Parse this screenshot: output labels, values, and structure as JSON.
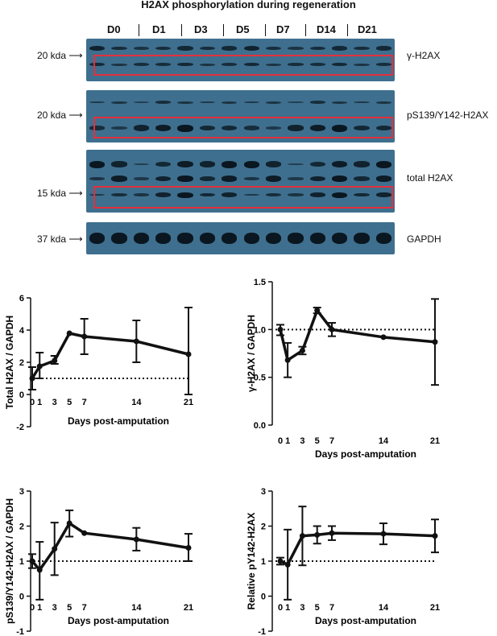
{
  "title": "H2AX phosphorylation during regeneration",
  "lanes": [
    "D0",
    "D1",
    "D3",
    "D5",
    "D7",
    "D14",
    "D21"
  ],
  "blots": [
    {
      "protein": "γ-H2AX",
      "marker": "20 kda"
    },
    {
      "protein": "pS139/Y142-H2AX",
      "marker": "20 kda"
    },
    {
      "protein": "total H2AX",
      "marker": "15 kda"
    },
    {
      "protein": "GAPDH",
      "marker": "37 kda"
    }
  ],
  "chart_data": [
    {
      "type": "line",
      "x": [
        0,
        1,
        3,
        5,
        7,
        14,
        21
      ],
      "y": [
        1.0,
        1.75,
        2.1,
        3.8,
        3.6,
        3.3,
        2.5
      ],
      "err_low": [
        0.3,
        1.0,
        1.9,
        3.8,
        2.5,
        2.0,
        0.0
      ],
      "err_high": [
        1.7,
        2.6,
        2.4,
        3.8,
        4.7,
        4.6,
        5.4
      ],
      "xlabel": "Days post-amputation",
      "ylabel": "Total H2AX / GAPDH",
      "ylim": [
        -2,
        6
      ],
      "yticks": [
        "-2",
        "0",
        "2",
        "4",
        "6"
      ],
      "xticks": [
        "0",
        "1",
        "3",
        "5",
        "7",
        "14",
        "21"
      ],
      "reference_line": 1
    },
    {
      "type": "line",
      "x": [
        0,
        1,
        3,
        5,
        7,
        14,
        21
      ],
      "y": [
        1.0,
        0.68,
        0.78,
        1.2,
        1.0,
        0.92,
        0.87
      ],
      "err_low": [
        0.94,
        0.5,
        0.74,
        1.17,
        0.93,
        0.92,
        0.42
      ],
      "err_high": [
        1.05,
        0.86,
        0.82,
        1.23,
        1.07,
        0.92,
        1.32
      ],
      "xlabel": "Days post-amputation",
      "ylabel": "γ-H2AX / GAPDH",
      "ylim": [
        0,
        1.5
      ],
      "yticks": [
        "0.0",
        "0.5",
        "1.0",
        "1.5"
      ],
      "xticks": [
        "0",
        "1",
        "3",
        "5",
        "7",
        "14",
        "21"
      ],
      "reference_line": 1
    },
    {
      "type": "line",
      "x": [
        0,
        1,
        3,
        5,
        7,
        14,
        21
      ],
      "y": [
        1.0,
        0.75,
        1.35,
        2.08,
        1.8,
        1.62,
        1.38
      ],
      "err_low": [
        0.8,
        -0.1,
        0.6,
        1.7,
        1.8,
        1.3,
        1.0
      ],
      "err_high": [
        1.2,
        1.55,
        2.1,
        2.45,
        1.8,
        1.95,
        1.78
      ],
      "xlabel": "Days post-amputation",
      "ylabel": "pS139/Y142-H2AX / GAPDH",
      "ylim": [
        -1,
        3
      ],
      "yticks": [
        "-1",
        "0",
        "1",
        "2",
        "3"
      ],
      "xticks": [
        "0",
        "1",
        "3",
        "5",
        "7",
        "14",
        "21"
      ],
      "reference_line": 1
    },
    {
      "type": "line",
      "x": [
        0,
        1,
        3,
        5,
        7,
        14,
        21
      ],
      "y": [
        1.0,
        0.9,
        1.72,
        1.75,
        1.8,
        1.78,
        1.72
      ],
      "err_low": [
        0.9,
        -0.1,
        0.88,
        1.5,
        1.6,
        1.48,
        1.25
      ],
      "err_high": [
        1.1,
        1.9,
        2.56,
        2.0,
        2.0,
        2.08,
        2.19
      ],
      "xlabel": "Days post-amputation",
      "ylabel": "Relative pY142-H2AX",
      "ylim": [
        -1,
        3
      ],
      "yticks": [
        "-1",
        "0",
        "1",
        "2",
        "3"
      ],
      "xticks": [
        "0",
        "1",
        "3",
        "5",
        "7",
        "14",
        "21"
      ],
      "reference_line": 1
    }
  ]
}
